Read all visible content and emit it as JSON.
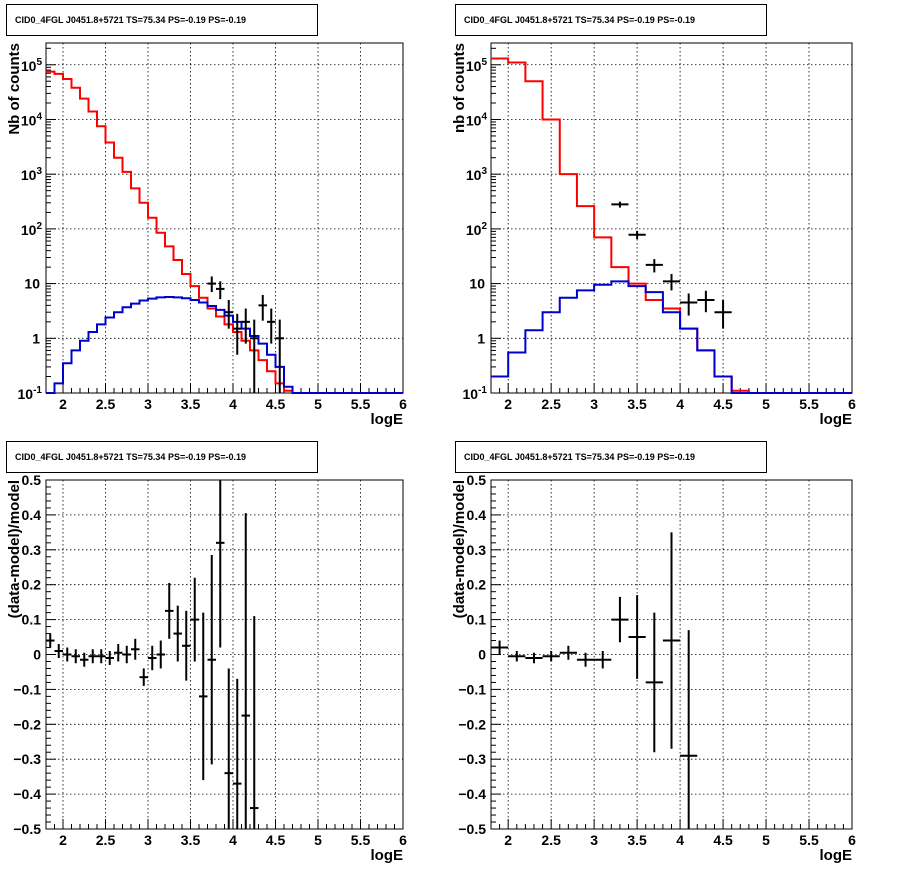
{
  "chart_data": [
    {
      "type": "line",
      "title": "CID0_4FGL J0451.8+5721 TS=75.34 PS=-0.19 PS=-0.19",
      "xlabel": "logE",
      "ylabel": "Nb of counts",
      "xlim": [
        1.8,
        6.0
      ],
      "ylim": [
        0.1,
        250000
      ],
      "ylog": true,
      "grid": true,
      "xticks": [
        "2",
        "2.5",
        "3",
        "3.5",
        "4",
        "4.5",
        "5",
        "5.5",
        "6"
      ],
      "yticks": [
        "10^-1",
        "1",
        "10",
        "10^2",
        "10^3",
        "10^4",
        "10^5"
      ],
      "bin_width": 0.1,
      "bin_edges_start": 1.8,
      "series": [
        {
          "color": "#ff0000",
          "values": [
            75000,
            68000,
            55000,
            38000,
            24000,
            14000,
            7500,
            3800,
            2000,
            1100,
            550,
            300,
            160,
            85,
            48,
            27,
            15,
            9,
            5.5,
            3.5,
            2.5,
            1.8,
            1.3,
            0.9,
            0.6,
            0.4,
            0.25,
            0.15,
            0.11,
            0.1,
            0.1,
            0.1,
            0.1,
            0.1,
            0.1,
            0.1,
            0.1,
            0.1,
            0.1,
            0.1,
            0.1,
            0.1
          ]
        },
        {
          "color": "#0000cc",
          "values": [
            0.1,
            0.15,
            0.35,
            0.6,
            0.9,
            1.3,
            1.8,
            2.4,
            3.0,
            3.7,
            4.3,
            4.9,
            5.3,
            5.6,
            5.7,
            5.6,
            5.4,
            5.0,
            4.5,
            3.9,
            3.3,
            2.6,
            2.0,
            1.5,
            1.1,
            0.8,
            0.5,
            0.3,
            0.13,
            0.1,
            0.1,
            0.1,
            0.1,
            0.1,
            0.1,
            0.1,
            0.1,
            0.1,
            0.1,
            0.1,
            0.1,
            0.1
          ]
        }
      ],
      "data_points": [
        {
          "x": 3.75,
          "y": 10.0,
          "ylo": 7.0,
          "yhi": 13.5
        },
        {
          "x": 3.85,
          "y": 8.0,
          "ylo": 5.2,
          "yhi": 11.0
        },
        {
          "x": 3.95,
          "y": 3.0,
          "ylo": 1.5,
          "yhi": 5.0
        },
        {
          "x": 4.05,
          "y": 1.5,
          "ylo": 0.5,
          "yhi": 2.8
        },
        {
          "x": 4.15,
          "y": 2.0,
          "ylo": 0.8,
          "yhi": 3.5
        },
        {
          "x": 4.25,
          "y": 1.0,
          "ylo": 0.1,
          "yhi": 2.2
        },
        {
          "x": 4.35,
          "y": 4.0,
          "ylo": 2.1,
          "yhi": 6.2
        },
        {
          "x": 4.45,
          "y": 2.0,
          "ylo": 0.8,
          "yhi": 3.5
        },
        {
          "x": 4.55,
          "y": 1.0,
          "ylo": 0.1,
          "yhi": 2.2
        }
      ]
    },
    {
      "type": "line",
      "title": "CID0_4FGL J0451.8+5721 TS=75.34 PS=-0.19 PS=-0.19",
      "xlabel": "logE",
      "ylabel": "nb of counts",
      "xlim": [
        1.8,
        6.0
      ],
      "ylim": [
        0.1,
        250000
      ],
      "ylog": true,
      "grid": true,
      "xticks": [
        "2",
        "2.5",
        "3",
        "3.5",
        "4",
        "4.5",
        "5",
        "5.5",
        "6"
      ],
      "yticks": [
        "10^-1",
        "1",
        "10",
        "10^2",
        "10^3",
        "10^4",
        "10^5"
      ],
      "bin_width": 0.2,
      "bin_edges_start": 1.8,
      "series": [
        {
          "color": "#ff0000",
          "values": [
            130000,
            110000,
            50000,
            10000,
            1000,
            260,
            70,
            20,
            10,
            5,
            3.5,
            1.5,
            0.6,
            0.2,
            0.11,
            0.1,
            0.1,
            0.1,
            0.1,
            0.1,
            0.1
          ]
        },
        {
          "color": "#0000cc",
          "values": [
            0.2,
            0.55,
            1.4,
            3.0,
            5.5,
            7.5,
            9.5,
            11.0,
            9.0,
            7.0,
            3.0,
            1.5,
            0.6,
            0.2,
            0.1,
            0.1,
            0.1,
            0.1,
            0.1,
            0.1,
            0.1
          ]
        }
      ],
      "data_points": [
        {
          "x": 3.3,
          "y": 280,
          "ylo": 245,
          "yhi": 315
        },
        {
          "x": 3.5,
          "y": 78,
          "ylo": 65,
          "yhi": 92
        },
        {
          "x": 3.7,
          "y": 22,
          "ylo": 16,
          "yhi": 28
        },
        {
          "x": 3.9,
          "y": 11,
          "ylo": 7.5,
          "yhi": 15
        },
        {
          "x": 4.1,
          "y": 4.5,
          "ylo": 2.6,
          "yhi": 6.6
        },
        {
          "x": 4.3,
          "y": 5.0,
          "ylo": 3.0,
          "yhi": 7.4
        },
        {
          "x": 4.5,
          "y": 3.0,
          "ylo": 1.5,
          "yhi": 5.0
        }
      ]
    },
    {
      "type": "scatter",
      "title": "CID0_4FGL J0451.8+5721 TS=75.34 PS=-0.19 PS=-0.19",
      "xlabel": "logE",
      "ylabel": "(data-model)/model",
      "xlim": [
        1.8,
        6.0
      ],
      "ylim": [
        -0.5,
        0.5
      ],
      "grid": true,
      "xticks": [
        "2",
        "2.5",
        "3",
        "3.5",
        "4",
        "4.5",
        "5",
        "5.5",
        "6"
      ],
      "yticks": [
        "−0.5",
        "−0.4",
        "−0.3",
        "−0.2",
        "−0.1",
        "0",
        "0.1",
        "0.2",
        "0.3",
        "0.4",
        "0.5"
      ],
      "xerr": 0.05,
      "points": [
        {
          "x": 1.85,
          "y": 0.04,
          "err": 0.02
        },
        {
          "x": 1.95,
          "y": 0.01,
          "err": 0.02
        },
        {
          "x": 2.05,
          "y": 0.0,
          "err": 0.02
        },
        {
          "x": 2.15,
          "y": -0.005,
          "err": 0.02
        },
        {
          "x": 2.25,
          "y": -0.015,
          "err": 0.02
        },
        {
          "x": 2.35,
          "y": -0.005,
          "err": 0.02
        },
        {
          "x": 2.45,
          "y": -0.005,
          "err": 0.02
        },
        {
          "x": 2.55,
          "y": -0.01,
          "err": 0.02
        },
        {
          "x": 2.65,
          "y": 0.005,
          "err": 0.025
        },
        {
          "x": 2.75,
          "y": 0.0,
          "err": 0.025
        },
        {
          "x": 2.85,
          "y": 0.015,
          "err": 0.03
        },
        {
          "x": 2.95,
          "y": -0.065,
          "err": 0.025
        },
        {
          "x": 3.05,
          "y": -0.01,
          "err": 0.035
        },
        {
          "x": 3.15,
          "y": 0.0,
          "err": 0.04
        },
        {
          "x": 3.25,
          "y": 0.125,
          "err": 0.08
        },
        {
          "x": 3.35,
          "y": 0.06,
          "err": 0.08
        },
        {
          "x": 3.45,
          "y": 0.025,
          "err": 0.1
        },
        {
          "x": 3.55,
          "y": 0.1,
          "err": 0.12
        },
        {
          "x": 3.65,
          "y": -0.12,
          "err": 0.24
        },
        {
          "x": 3.75,
          "y": -0.015,
          "err": 0.3
        },
        {
          "x": 3.85,
          "y": 0.32,
          "err": 0.3
        },
        {
          "x": 3.95,
          "y": -0.34,
          "err": 0.3
        },
        {
          "x": 4.05,
          "y": -0.37,
          "err": 0.3
        },
        {
          "x": 4.15,
          "y": -0.175,
          "err": 0.58
        },
        {
          "x": 4.25,
          "y": -0.44,
          "err": 0.55
        }
      ]
    },
    {
      "type": "scatter",
      "title": "CID0_4FGL J0451.8+5721 TS=75.34 PS=-0.19 PS=-0.19",
      "xlabel": "logE",
      "ylabel": "(data-model)/model",
      "xlim": [
        1.8,
        6.0
      ],
      "ylim": [
        -0.5,
        0.5
      ],
      "grid": true,
      "xticks": [
        "2",
        "2.5",
        "3",
        "3.5",
        "4",
        "4.5",
        "5",
        "5.5",
        "6"
      ],
      "yticks": [
        "−0.5",
        "−0.4",
        "−0.3",
        "−0.2",
        "−0.1",
        "0",
        "0.1",
        "0.2",
        "0.3",
        "0.4",
        "0.5"
      ],
      "xerr": 0.1,
      "points": [
        {
          "x": 1.9,
          "y": 0.02,
          "err": 0.02
        },
        {
          "x": 2.1,
          "y": -0.005,
          "err": 0.015
        },
        {
          "x": 2.3,
          "y": -0.01,
          "err": 0.015
        },
        {
          "x": 2.5,
          "y": -0.005,
          "err": 0.015
        },
        {
          "x": 2.7,
          "y": 0.005,
          "err": 0.02
        },
        {
          "x": 2.9,
          "y": -0.015,
          "err": 0.02
        },
        {
          "x": 3.1,
          "y": -0.015,
          "err": 0.025
        },
        {
          "x": 3.3,
          "y": 0.1,
          "err": 0.065
        },
        {
          "x": 3.5,
          "y": 0.05,
          "err": 0.12
        },
        {
          "x": 3.7,
          "y": -0.08,
          "err": 0.2
        },
        {
          "x": 3.9,
          "y": 0.04,
          "err": 0.31
        },
        {
          "x": 4.1,
          "y": -0.29,
          "err": 0.36
        }
      ]
    }
  ]
}
